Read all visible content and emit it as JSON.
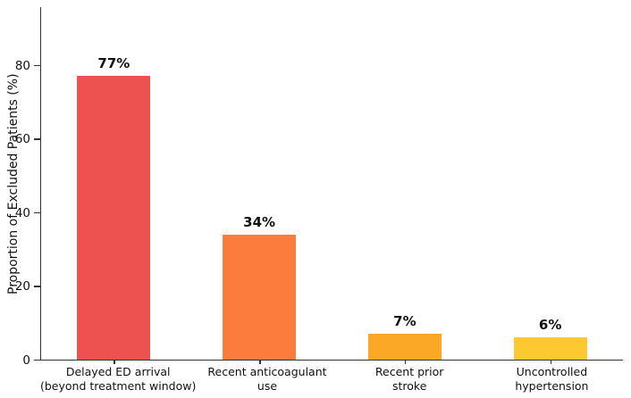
{
  "figure": {
    "background": "#ffffff",
    "axis_color": "#333333",
    "text_color": "#111111"
  },
  "chart_data": {
    "type": "bar",
    "title": "",
    "xlabel": "",
    "ylabel": "Proportion of Excluded Patients (%)",
    "categories": [
      [
        "Delayed ED arrival",
        "(beyond treatment window)"
      ],
      [
        "Recent anticoagulant",
        "use"
      ],
      [
        "Recent prior",
        "stroke"
      ],
      [
        "Uncontrolled",
        "hypertension"
      ]
    ],
    "values": [
      77,
      34,
      7,
      6
    ],
    "value_labels": [
      "77%",
      "34%",
      "7%",
      "6%"
    ],
    "bar_colors": [
      "#ee5250",
      "#fb7c3c",
      "#fba827",
      "#fdc930"
    ],
    "yticks": [
      0,
      20,
      40,
      60,
      80
    ],
    "ylim": [
      0,
      96
    ],
    "grid": false,
    "legend": "none"
  }
}
